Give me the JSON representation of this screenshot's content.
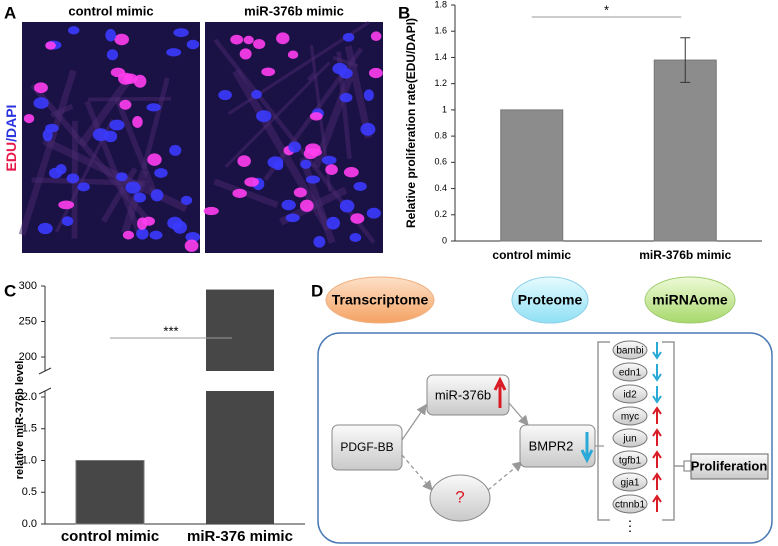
{
  "panel_labels": [
    "A",
    "B",
    "C",
    "D"
  ],
  "panel_a": {
    "titles": [
      "control mimic",
      "miR-376b mimic"
    ],
    "ylabel_parts": [
      "EDU",
      "/DAPI"
    ],
    "ylabel_colors": [
      "#e8194a",
      "#2a33e0"
    ]
  },
  "chart_data": [
    {
      "type": "bar",
      "ylabel": "Relative proliferation rate(EDU/DAPI)",
      "categories": [
        "control mimic",
        "miR-376b mimic"
      ],
      "values": [
        1,
        1.38
      ],
      "errors": [
        null,
        0.17
      ],
      "color": "#8c8c8c",
      "ylim": [
        0,
        1.8
      ],
      "yticks": [
        0,
        0.2,
        0.4,
        0.6,
        0.8,
        1,
        1.2,
        1.4,
        1.6,
        1.8
      ],
      "annotation": "*"
    },
    {
      "type": "bar",
      "ylabel": "relative miR-376b level",
      "categories": [
        "control mimic",
        "miR-376 mimic"
      ],
      "values": [
        1,
        295
      ],
      "color": "#474747",
      "ylim": [
        0,
        300
      ],
      "ybreak": [
        2,
        200
      ],
      "yticks": [
        {
          "value": 0,
          "label": "0.0"
        },
        0.5,
        {
          "value": 1,
          "label": "1.0"
        },
        1.5,
        {
          "value": 2,
          "label": "2.0"
        },
        200,
        250,
        300
      ],
      "annotation": "***"
    }
  ],
  "diagram": {
    "omics": [
      "Transcriptome",
      "Proteome",
      "miRNAome"
    ],
    "nodes": [
      "PDGF-BB",
      "miR-376b",
      "?",
      "BMPR2",
      "Proliferation"
    ],
    "genes": [
      "bambi",
      "edn1",
      "id2",
      "myc",
      "jun",
      "tgfb1",
      "gja1",
      "ctnnb1"
    ],
    "more": "⋮"
  }
}
